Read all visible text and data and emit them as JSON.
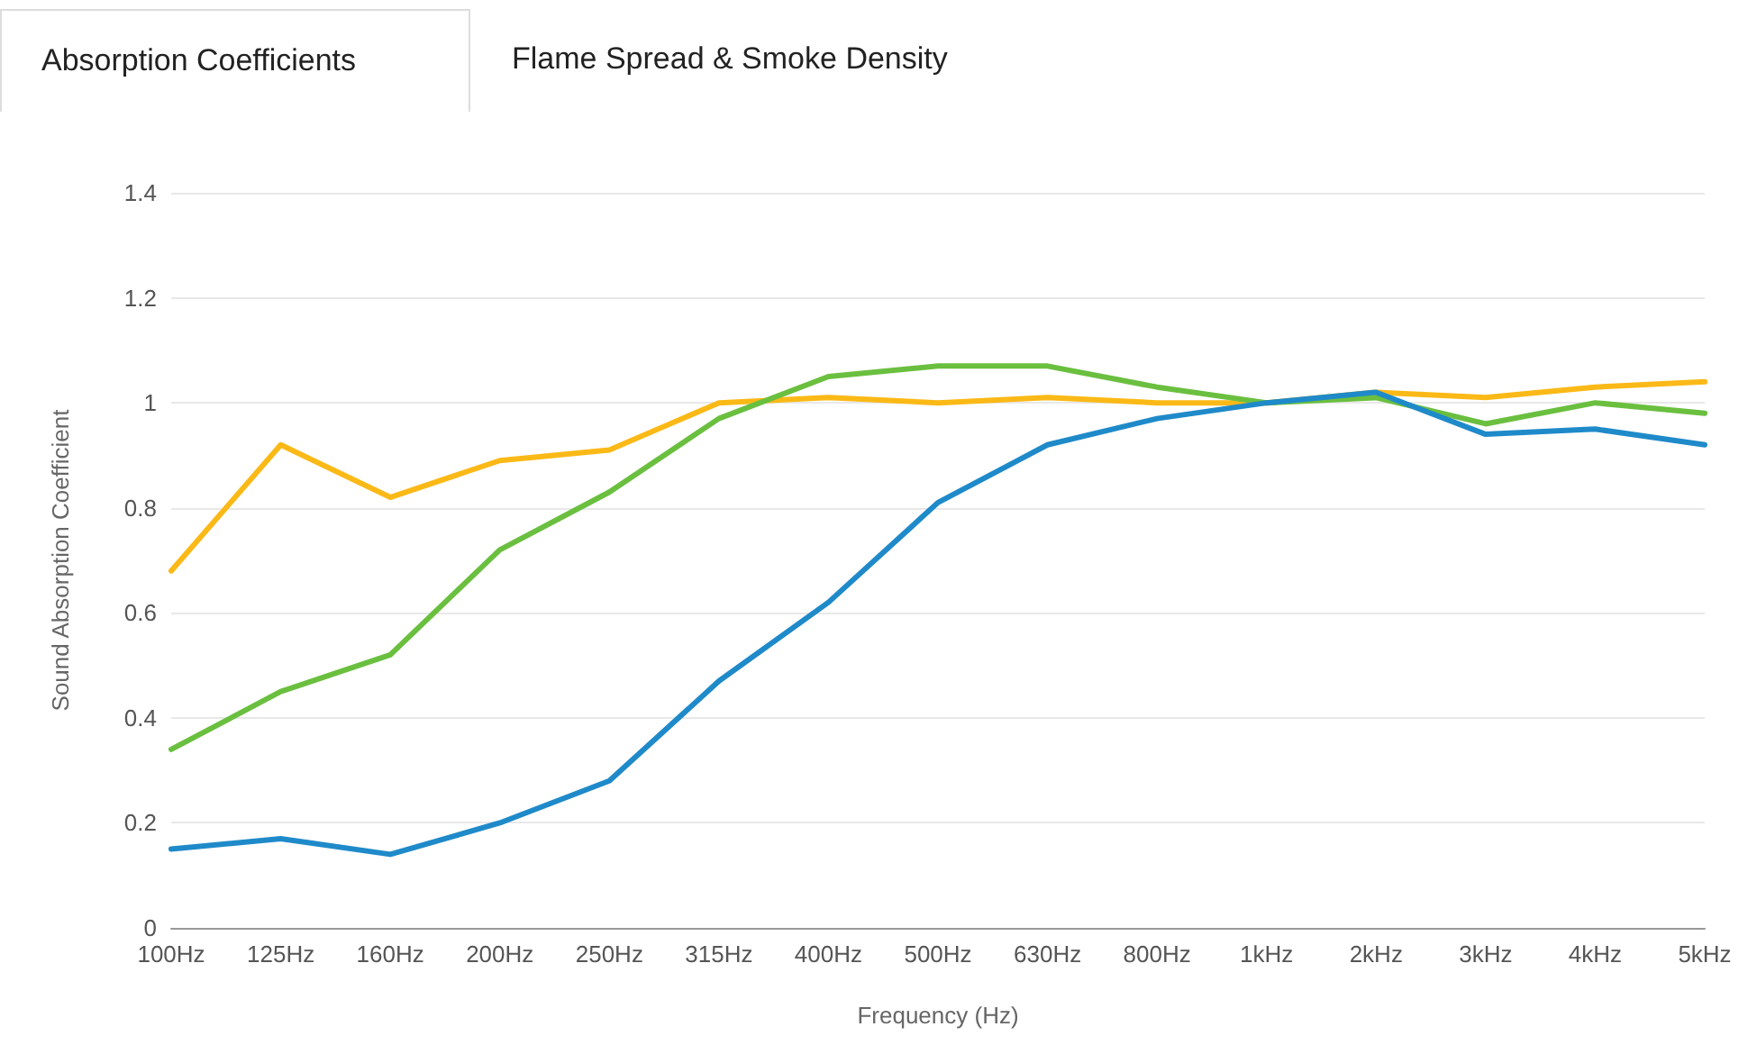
{
  "chart_data": {
    "type": "line",
    "annotations": [
      "Absorption Coefficients",
      "Flame Spread & Smoke Density"
    ],
    "xlabel": "Frequency (Hz)",
    "ylabel": "Sound Absorption Coefficient",
    "categories": [
      "100Hz",
      "125Hz",
      "160Hz",
      "200Hz",
      "250Hz",
      "315Hz",
      "400Hz",
      "500Hz",
      "630Hz",
      "800Hz",
      "1kHz",
      "2kHz",
      "3kHz",
      "4kHz",
      "5kHz"
    ],
    "series": [
      {
        "color": "#fbb917",
        "values": [
          0.68,
          0.92,
          0.82,
          0.89,
          0.91,
          1.0,
          1.01,
          1.0,
          1.01,
          1.0,
          1.0,
          1.02,
          1.01,
          1.03,
          1.04
        ]
      },
      {
        "color": "#6abf3f",
        "values": [
          0.34,
          0.45,
          0.52,
          0.72,
          0.83,
          0.97,
          1.05,
          1.07,
          1.07,
          1.03,
          1.0,
          1.01,
          0.96,
          1.0,
          0.98
        ]
      },
      {
        "color": "#1f8ac9",
        "values": [
          0.15,
          0.17,
          0.14,
          0.2,
          0.28,
          0.47,
          0.62,
          0.81,
          0.92,
          0.97,
          1.0,
          1.02,
          0.94,
          0.95,
          0.92
        ]
      }
    ],
    "ylim": [
      0,
      1.4
    ],
    "yticks": [
      0,
      0.2,
      0.4,
      0.6,
      0.8,
      1.0,
      1.2,
      1.4
    ],
    "grid": "y",
    "marker": "none",
    "line_style": "solid"
  }
}
